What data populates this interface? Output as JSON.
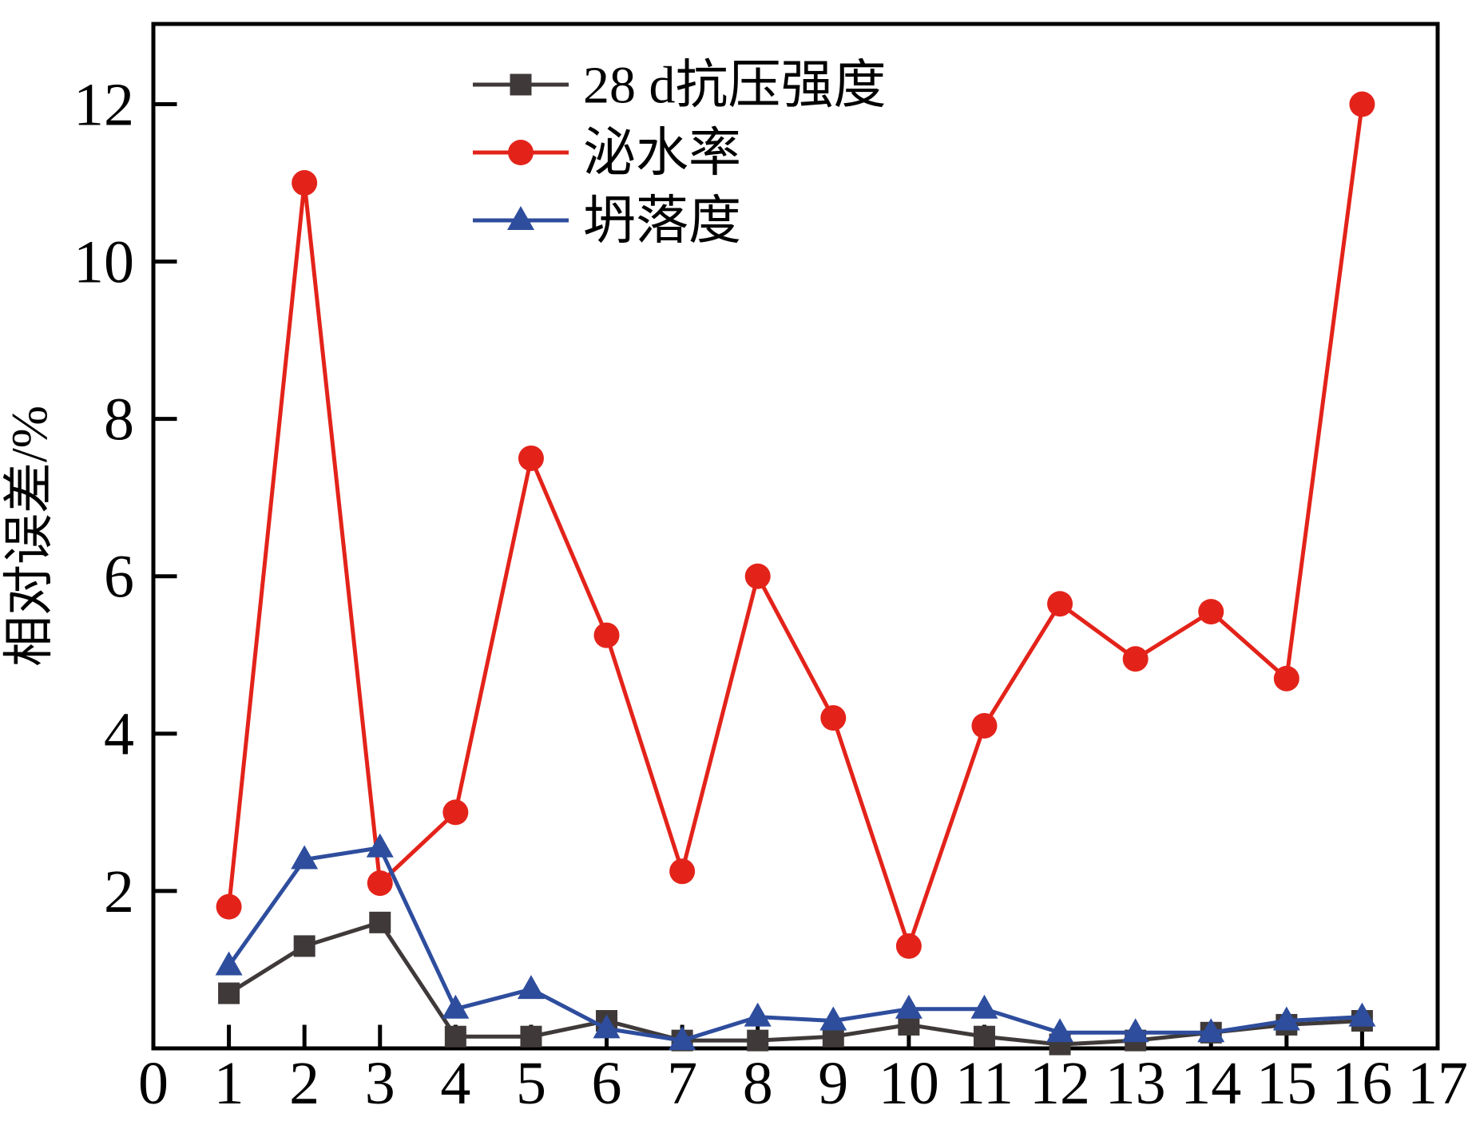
{
  "chart_data": {
    "type": "line",
    "x": [
      1,
      2,
      3,
      4,
      5,
      6,
      7,
      8,
      9,
      10,
      11,
      12,
      13,
      14,
      15,
      16
    ],
    "series": [
      {
        "name": "28 d抗压强度",
        "marker": "square",
        "color": "#3f3a39",
        "values": [
          0.7,
          1.3,
          1.6,
          0.15,
          0.15,
          0.35,
          0.1,
          0.1,
          0.15,
          0.3,
          0.15,
          0.05,
          0.1,
          0.2,
          0.3,
          0.35
        ]
      },
      {
        "name": "泌水率",
        "marker": "circle",
        "color": "#e3231a",
        "values": [
          1.8,
          11.0,
          2.1,
          3.0,
          7.5,
          5.25,
          2.25,
          6.0,
          4.2,
          1.3,
          4.1,
          5.65,
          4.95,
          5.55,
          4.7,
          12.0
        ]
      },
      {
        "name": "坍落度",
        "marker": "triangle",
        "color": "#2e4d9d",
        "values": [
          1.05,
          2.4,
          2.55,
          0.5,
          0.75,
          0.25,
          0.1,
          0.4,
          0.35,
          0.5,
          0.5,
          0.2,
          0.2,
          0.2,
          0.35,
          0.4
        ]
      }
    ],
    "title": "",
    "xlabel": "",
    "ylabel": "相对误差/%",
    "xlim": [
      0,
      17
    ],
    "ylim": [
      0,
      13.02
    ],
    "xticks": [
      0,
      1,
      2,
      3,
      4,
      5,
      6,
      7,
      8,
      9,
      10,
      11,
      12,
      13,
      14,
      15,
      16,
      17
    ],
    "yticks": [
      2,
      4,
      6,
      8,
      10,
      12
    ],
    "grid": false,
    "legend_position": "top-center",
    "frame_color": "#000000"
  }
}
